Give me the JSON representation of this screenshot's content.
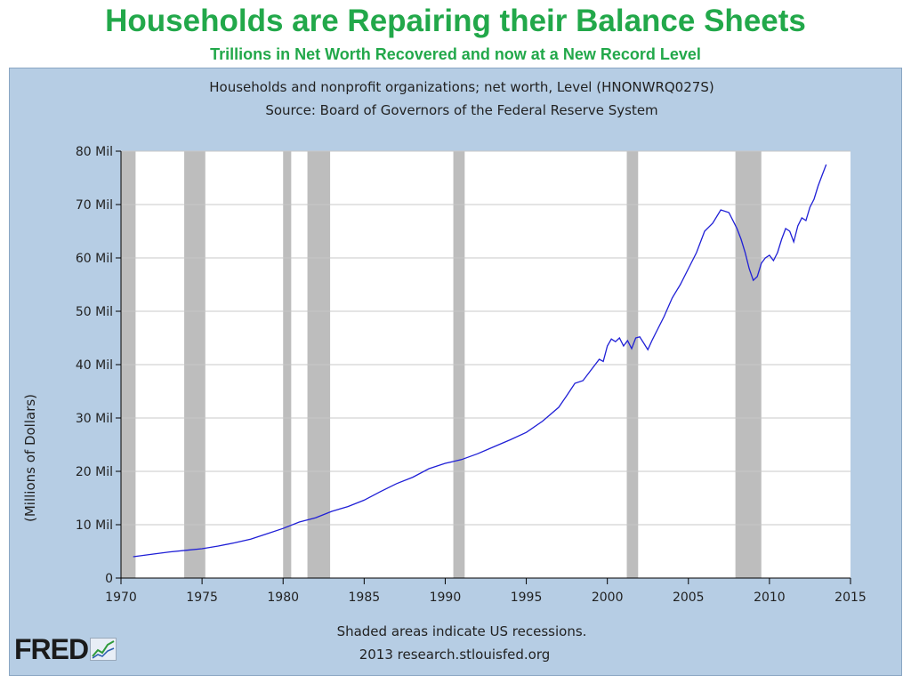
{
  "slide": {
    "title": "Households are Repairing their Balance Sheets",
    "subtitle": "Trillions in Net Worth Recovered and now at a New Record Level"
  },
  "logo": {
    "text": "FRED"
  },
  "colors": {
    "title": "#22a84a",
    "panel": "#b6cde4",
    "line": "#1f1fd6",
    "recession": "#bdbdbd",
    "grid": "#c8c8c8"
  },
  "chart_data": {
    "type": "line",
    "title": "Households and nonprofit organizations; net worth, Level (HNONWRQ027S)",
    "subtitle": "Source: Board of Governors of the Federal Reserve System",
    "ylabel": "(Millions of Dollars)",
    "xlabel": "",
    "xlim": [
      1970,
      2015
    ],
    "ylim": [
      0,
      80
    ],
    "x_ticks": [
      "1970",
      "1975",
      "1980",
      "1985",
      "1990",
      "1995",
      "2000",
      "2005",
      "2010",
      "2015"
    ],
    "y_ticks": [
      "0",
      "10 Mil",
      "20 Mil",
      "30 Mil",
      "40 Mil",
      "50 Mil",
      "60 Mil",
      "70 Mil",
      "80 Mil"
    ],
    "grid": true,
    "footnote": "Shaded areas indicate US recessions.",
    "credit": "2013 research.stlouisfed.org",
    "recessions": [
      [
        1969.9,
        1970.9
      ],
      [
        1973.9,
        1975.2
      ],
      [
        1980.0,
        1980.5
      ],
      [
        1981.5,
        1982.9
      ],
      [
        1990.5,
        1991.2
      ],
      [
        2001.2,
        2001.9
      ],
      [
        2007.9,
        2009.5
      ]
    ],
    "series": [
      {
        "x": [
          1970.75,
          1972,
          1973,
          1974,
          1975,
          1976,
          1977,
          1978,
          1979,
          1980,
          1981,
          1982,
          1983,
          1984,
          1985,
          1986,
          1987,
          1988,
          1989,
          1990,
          1991,
          1992,
          1993,
          1994,
          1995,
          1996,
          1997,
          1997.5,
          1998,
          1998.5,
          1999,
          1999.5,
          1999.75,
          2000,
          2000.25,
          2000.5,
          2000.75,
          2001,
          2001.25,
          2001.5,
          2001.75,
          2002,
          2002.25,
          2002.5,
          2002.75,
          2003,
          2003.5,
          2004,
          2004.5,
          2005,
          2005.5,
          2006,
          2006.5,
          2007,
          2007.5,
          2008,
          2008.25,
          2008.5,
          2008.75,
          2009,
          2009.25,
          2009.5,
          2009.75,
          2010,
          2010.25,
          2010.5,
          2010.75,
          2011,
          2011.25,
          2011.5,
          2011.75,
          2012,
          2012.25,
          2012.5,
          2012.75,
          2013,
          2013.25,
          2013.5
        ],
        "y": [
          4.0,
          4.5,
          4.9,
          5.2,
          5.5,
          6.0,
          6.6,
          7.3,
          8.3,
          9.3,
          10.5,
          11.3,
          12.5,
          13.4,
          14.6,
          16.2,
          17.7,
          18.9,
          20.5,
          21.5,
          22.2,
          23.3,
          24.6,
          25.9,
          27.3,
          29.4,
          32.0,
          34.2,
          36.5,
          37.0,
          39.0,
          41.0,
          40.6,
          43.5,
          44.8,
          44.3,
          45.0,
          43.5,
          44.5,
          43.0,
          45.0,
          45.2,
          44.0,
          42.8,
          44.5,
          46.0,
          49.0,
          52.5,
          55.0,
          58.0,
          61.0,
          65.0,
          66.5,
          69.0,
          68.5,
          65.5,
          63.5,
          61.0,
          58.0,
          55.8,
          56.5,
          59.0,
          60.0,
          60.5,
          59.5,
          61.0,
          63.5,
          65.5,
          65.0,
          63.0,
          66.0,
          67.5,
          67.0,
          69.5,
          71.0,
          73.5,
          75.5,
          77.5
        ]
      }
    ]
  }
}
